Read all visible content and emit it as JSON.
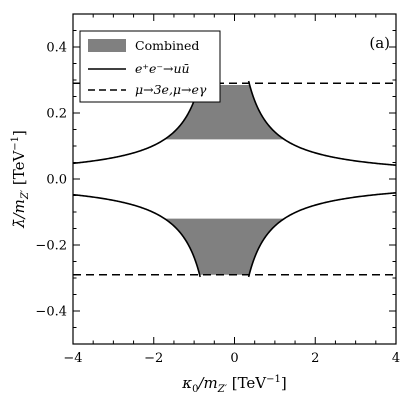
{
  "chart_data": {
    "type": "line",
    "panel_label": "(a)",
    "xlabel": "κ₀/m_{Z'} [TeV⁻¹]",
    "ylabel": "λ̄/m_{Z'} [TeV⁻¹]",
    "xlabel_parts": {
      "sym": "κ",
      "sub0": "0",
      "mid": "/m",
      "subZ": "Z′",
      "unit": " [TeV",
      "exp": "−1",
      "close": "]"
    },
    "ylabel_parts": {
      "sym": "λ̄",
      "mid": "/m",
      "subZ": "Z′",
      "unit": " [TeV",
      "exp": "−1",
      "close": "]"
    },
    "xlim": [
      -4,
      4
    ],
    "ylim": [
      -0.5,
      0.5
    ],
    "x_ticks": [
      -4,
      -2,
      0,
      2,
      4
    ],
    "x_tick_labels": [
      "−4",
      "−2",
      "0",
      "2",
      "4"
    ],
    "y_ticks": [
      -0.4,
      -0.2,
      0.0,
      0.2,
      0.4
    ],
    "y_tick_labels": [
      "−0.4",
      "−0.2",
      "0.0",
      "0.2",
      "0.4"
    ],
    "legend": {
      "position": "top-left",
      "entries": [
        {
          "kind": "box",
          "label": "Combined"
        },
        {
          "kind": "solid",
          "label": "e⁺e⁻→uū"
        },
        {
          "kind": "dashed",
          "label": "μ→3e,μ→eγ"
        }
      ]
    },
    "series": [
      {
        "name": "e⁺e⁻→uū",
        "style": "solid",
        "model": "hyperbola",
        "x_center": -0.25,
        "k": 0.178,
        "branches": [
          {
            "sign_y": 1,
            "x_range": [
              0.35,
              4
            ]
          },
          {
            "sign_y": 1,
            "x_range": [
              -4,
              -0.85
            ]
          },
          {
            "sign_y": -1,
            "x_range": [
              0.35,
              4
            ]
          },
          {
            "sign_y": -1,
            "x_range": [
              -4,
              -0.85
            ]
          }
        ]
      },
      {
        "name": "μ→3e,μ→eγ",
        "style": "dashed",
        "y_values": [
          0.29,
          -0.29
        ]
      }
    ],
    "shaded_regions": [
      {
        "name": "Combined",
        "y_range": [
          0.12,
          0.285
        ],
        "bounded_by": "e⁺e⁻→uū"
      },
      {
        "name": "Combined",
        "y_range": [
          -0.29,
          -0.12
        ],
        "bounded_by": "e⁺e⁻→uū"
      }
    ],
    "colors": {
      "fill": "#808080",
      "line": "#000000",
      "background": "#ffffff"
    }
  }
}
